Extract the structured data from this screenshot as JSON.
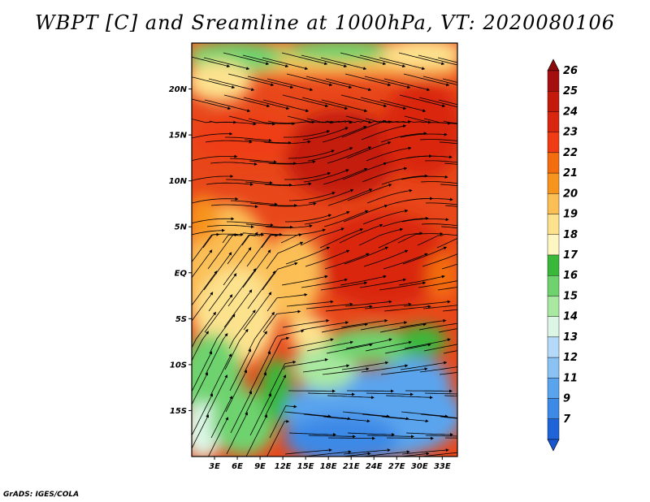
{
  "title": "WBPT [C] and Sreamline at 1000hPa, VT: 2020080106",
  "credit": "GrADS: IGES/COLA",
  "map": {
    "lon_range": [
      0,
      35
    ],
    "lat_range": [
      -20,
      25
    ],
    "lat_ticks": [
      {
        "value": 20,
        "label": "20N"
      },
      {
        "value": 15,
        "label": "15N"
      },
      {
        "value": 10,
        "label": "10N"
      },
      {
        "value": 5,
        "label": "5N"
      },
      {
        "value": 0,
        "label": "EQ"
      },
      {
        "value": -5,
        "label": "5S"
      },
      {
        "value": -10,
        "label": "10S"
      },
      {
        "value": -15,
        "label": "15S"
      }
    ],
    "lon_ticks": [
      {
        "value": 3,
        "label": "3E"
      },
      {
        "value": 6,
        "label": "6E"
      },
      {
        "value": 9,
        "label": "9E"
      },
      {
        "value": 12,
        "label": "12E"
      },
      {
        "value": 15,
        "label": "15E"
      },
      {
        "value": 18,
        "label": "18E"
      },
      {
        "value": 21,
        "label": "21E"
      },
      {
        "value": 24,
        "label": "24E"
      },
      {
        "value": 27,
        "label": "27E"
      },
      {
        "value": 30,
        "label": "30E"
      },
      {
        "value": 33,
        "label": "33E"
      }
    ]
  },
  "colorbar": {
    "levels": [
      {
        "label": "26",
        "color": "#a50f0f"
      },
      {
        "label": "25",
        "color": "#c41a0c"
      },
      {
        "label": "24",
        "color": "#d9260f"
      },
      {
        "label": "23",
        "color": "#ef3c14"
      },
      {
        "label": "22",
        "color": "#f36d0f"
      },
      {
        "label": "21",
        "color": "#f7941e"
      },
      {
        "label": "20",
        "color": "#fbbf56"
      },
      {
        "label": "19",
        "color": "#fde28e"
      },
      {
        "label": "18",
        "color": "#fef6c2"
      },
      {
        "label": "17",
        "color": "#3ab83a"
      },
      {
        "label": "16",
        "color": "#6ed36e"
      },
      {
        "label": "15",
        "color": "#a9e8a0"
      },
      {
        "label": "14",
        "color": "#dcf6e6"
      },
      {
        "label": "13",
        "color": "#b5d9f8"
      },
      {
        "label": "12",
        "color": "#8ac3f3"
      },
      {
        "label": "11",
        "color": "#5aa4ee"
      },
      {
        "label": "9",
        "color": "#3d89e6"
      },
      {
        "label": "7",
        "color": "#1e63d8"
      }
    ],
    "top_color": "#8b0b0b",
    "bottom_color": "#1856cf"
  }
}
